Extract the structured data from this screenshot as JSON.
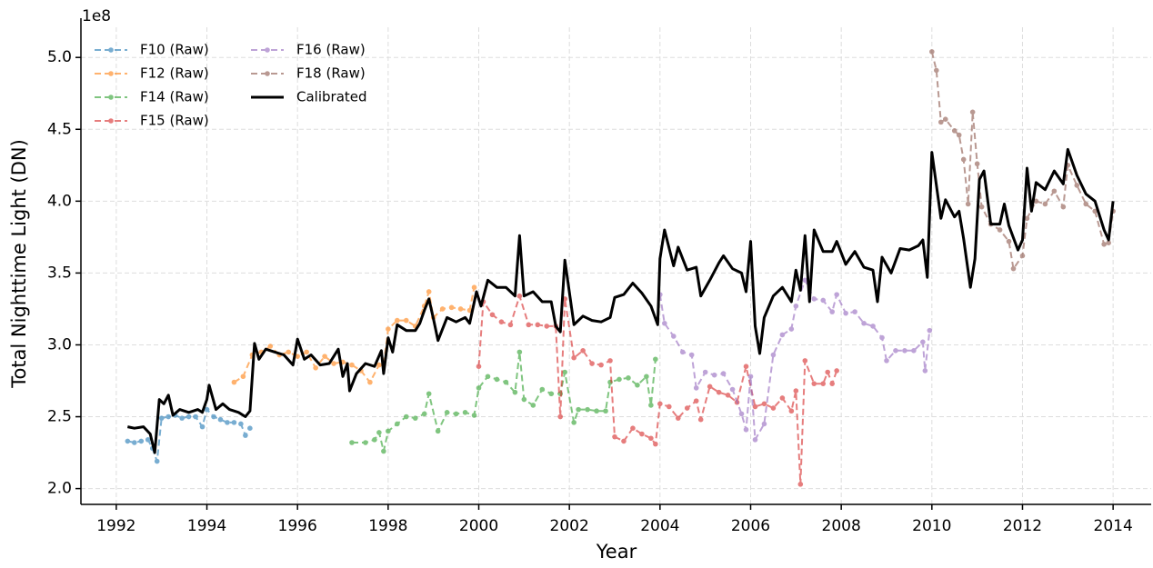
{
  "chart_data": {
    "type": "line",
    "axis_offset_label": "1e8",
    "xlabel": "Year",
    "ylabel": "Total Nighttime Light (DN)",
    "xlim": [
      1991.22,
      2014.84
    ],
    "ylim": [
      1.89,
      5.21
    ],
    "xticks": [
      1992,
      1994,
      1996,
      1998,
      2000,
      2002,
      2004,
      2006,
      2008,
      2010,
      2012,
      2014
    ],
    "yticks": [
      {
        "value": 2,
        "label": "2.0"
      },
      {
        "value": 2.5,
        "label": "2.5"
      },
      {
        "value": 3,
        "label": "3.0"
      },
      {
        "value": 3.5,
        "label": "3.5"
      },
      {
        "value": 4,
        "label": "4.0"
      },
      {
        "value": 4.5,
        "label": "4.5"
      },
      {
        "value": 5,
        "label": "5.0"
      }
    ],
    "grid": true,
    "legend": "upper left",
    "series": [
      {
        "name": "F10 (Raw)",
        "color": "#1f77b4",
        "dashed": true,
        "markers": true,
        "x": [
          1992.25,
          1992.4,
          1992.55,
          1992.7,
          1992.8,
          1992.9,
          1993.0,
          1993.15,
          1993.3,
          1993.45,
          1993.6,
          1993.75,
          1993.9,
          1994.0,
          1994.15,
          1994.3,
          1994.45,
          1994.6,
          1994.75,
          1994.85,
          1994.95
        ],
        "values": [
          2.33,
          2.32,
          2.33,
          2.34,
          2.28,
          2.19,
          2.49,
          2.5,
          2.51,
          2.49,
          2.5,
          2.5,
          2.43,
          2.55,
          2.5,
          2.48,
          2.46,
          2.46,
          2.45,
          2.37,
          2.42
        ]
      },
      {
        "name": "F12 (Raw)",
        "color": "#ff7f0e",
        "dashed": true,
        "markers": true,
        "x": [
          1994.6,
          1994.8,
          1995.0,
          1995.2,
          1995.4,
          1995.6,
          1995.8,
          1996.0,
          1996.2,
          1996.4,
          1996.6,
          1996.8,
          1997.0,
          1997.2,
          1997.4,
          1997.6,
          1997.8,
          1997.9,
          1998.0,
          1998.2,
          1998.4,
          1998.6,
          1998.8,
          1998.9,
          1999.0,
          1999.2,
          1999.4,
          1999.6,
          1999.8,
          1999.9
        ],
        "values": [
          2.74,
          2.78,
          2.93,
          2.95,
          2.99,
          2.93,
          2.95,
          2.92,
          2.95,
          2.84,
          2.92,
          2.87,
          2.88,
          2.86,
          2.82,
          2.74,
          2.86,
          2.86,
          3.11,
          3.17,
          3.17,
          3.13,
          3.27,
          3.37,
          3.19,
          3.25,
          3.26,
          3.25,
          3.24,
          3.4
        ]
      },
      {
        "name": "F14 (Raw)",
        "color": "#2ca02c",
        "dashed": true,
        "markers": true,
        "x": [
          1997.2,
          1997.5,
          1997.7,
          1997.8,
          1997.9,
          1998.0,
          1998.2,
          1998.4,
          1998.6,
          1998.8,
          1998.9,
          1999.1,
          1999.3,
          1999.5,
          1999.7,
          1999.9,
          2000.0,
          2000.2,
          2000.4,
          2000.6,
          2000.8,
          2000.9,
          2001.0,
          2001.2,
          2001.4,
          2001.6,
          2001.8,
          2001.9,
          2002.1,
          2002.2,
          2002.4,
          2002.6,
          2002.8,
          2002.9,
          2003.1,
          2003.3,
          2003.5,
          2003.7,
          2003.8,
          2003.9
        ],
        "values": [
          2.32,
          2.32,
          2.34,
          2.39,
          2.26,
          2.4,
          2.45,
          2.5,
          2.49,
          2.52,
          2.66,
          2.4,
          2.53,
          2.52,
          2.53,
          2.51,
          2.7,
          2.78,
          2.76,
          2.74,
          2.67,
          2.95,
          2.62,
          2.58,
          2.69,
          2.66,
          2.66,
          2.81,
          2.46,
          2.55,
          2.55,
          2.54,
          2.54,
          2.74,
          2.76,
          2.77,
          2.72,
          2.78,
          2.58,
          2.9
        ]
      },
      {
        "name": "F15 (Raw)",
        "color": "#d62728",
        "dashed": true,
        "markers": true,
        "x": [
          2000.0,
          2000.1,
          2000.3,
          2000.5,
          2000.7,
          2000.9,
          2001.1,
          2001.3,
          2001.5,
          2001.7,
          2001.8,
          2001.9,
          2002.1,
          2002.3,
          2002.5,
          2002.7,
          2002.9,
          2003.0,
          2003.2,
          2003.4,
          2003.6,
          2003.8,
          2003.9,
          2004.0,
          2004.2,
          2004.4,
          2004.6,
          2004.8,
          2004.9,
          2005.1,
          2005.3,
          2005.5,
          2005.7,
          2005.9,
          2006.1,
          2006.3,
          2006.5,
          2006.7,
          2006.9,
          2007.0,
          2007.1,
          2007.2,
          2007.4,
          2007.6,
          2007.7,
          2007.8,
          2007.9
        ],
        "values": [
          2.85,
          3.3,
          3.21,
          3.16,
          3.14,
          3.34,
          3.14,
          3.14,
          3.13,
          3.13,
          2.5,
          3.32,
          2.91,
          2.96,
          2.87,
          2.86,
          2.89,
          2.36,
          2.33,
          2.42,
          2.38,
          2.35,
          2.31,
          2.59,
          2.57,
          2.49,
          2.56,
          2.61,
          2.48,
          2.71,
          2.67,
          2.65,
          2.6,
          2.85,
          2.57,
          2.59,
          2.56,
          2.63,
          2.54,
          2.68,
          2.03,
          2.89,
          2.73,
          2.73,
          2.81,
          2.73,
          2.82
        ]
      },
      {
        "name": "F16 (Raw)",
        "color": "#9467bd",
        "dashed": true,
        "markers": true,
        "x": [
          2004.0,
          2004.1,
          2004.3,
          2004.5,
          2004.7,
          2004.8,
          2005.0,
          2005.2,
          2005.4,
          2005.6,
          2005.8,
          2005.9,
          2006.0,
          2006.1,
          2006.3,
          2006.5,
          2006.7,
          2006.9,
          2007.0,
          2007.2,
          2007.4,
          2007.6,
          2007.8,
          2007.9,
          2008.1,
          2008.3,
          2008.5,
          2008.7,
          2008.9,
          2009.0,
          2009.2,
          2009.4,
          2009.6,
          2009.8,
          2009.85,
          2009.95
        ],
        "values": [
          3.35,
          3.15,
          3.06,
          2.95,
          2.93,
          2.7,
          2.81,
          2.79,
          2.8,
          2.69,
          2.52,
          2.41,
          2.78,
          2.34,
          2.45,
          2.93,
          3.07,
          3.11,
          3.27,
          3.45,
          3.32,
          3.31,
          3.23,
          3.35,
          3.22,
          3.23,
          3.15,
          3.13,
          3.05,
          2.89,
          2.96,
          2.96,
          2.96,
          3.02,
          2.82,
          3.1
        ]
      },
      {
        "name": "F18 (Raw)",
        "color": "#8c564b",
        "dashed": true,
        "markers": true,
        "x": [
          2010.0,
          2010.1,
          2010.2,
          2010.3,
          2010.5,
          2010.6,
          2010.7,
          2010.8,
          2010.9,
          2011.0,
          2011.1,
          2011.3,
          2011.5,
          2011.7,
          2011.8,
          2012.0,
          2012.1,
          2012.3,
          2012.5,
          2012.7,
          2012.9,
          2013.0,
          2013.2,
          2013.4,
          2013.6,
          2013.8,
          2013.9,
          2014.0
        ],
        "values": [
          5.04,
          4.91,
          4.55,
          4.57,
          4.49,
          4.46,
          4.29,
          3.98,
          4.62,
          4.26,
          3.96,
          3.84,
          3.8,
          3.72,
          3.53,
          3.62,
          3.88,
          4.0,
          3.98,
          4.07,
          3.96,
          4.25,
          4.11,
          3.98,
          3.93,
          3.7,
          3.71,
          3.93
        ]
      },
      {
        "name": "Calibrated",
        "color": "#000000",
        "dashed": false,
        "markers": false,
        "x": [
          1992.25,
          1992.4,
          1992.6,
          1992.75,
          1992.85,
          1992.95,
          1993.05,
          1993.15,
          1993.25,
          1993.4,
          1993.6,
          1993.8,
          1993.9,
          1994.0,
          1994.05,
          1994.2,
          1994.35,
          1994.5,
          1994.7,
          1994.85,
          1994.95,
          1995.05,
          1995.15,
          1995.3,
          1995.5,
          1995.7,
          1995.9,
          1996.0,
          1996.15,
          1996.3,
          1996.5,
          1996.7,
          1996.9,
          1997.0,
          1997.1,
          1997.15,
          1997.3,
          1997.5,
          1997.7,
          1997.85,
          1997.9,
          1998.0,
          1998.1,
          1998.2,
          1998.4,
          1998.6,
          1998.7,
          1998.8,
          1998.9,
          1999.0,
          1999.1,
          1999.3,
          1999.5,
          1999.7,
          1999.8,
          1999.95,
          2000.05,
          2000.2,
          2000.4,
          2000.6,
          2000.8,
          2000.9,
          2001.0,
          2001.2,
          2001.4,
          2001.6,
          2001.7,
          2001.8,
          2001.9,
          2002.1,
          2002.3,
          2002.5,
          2002.7,
          2002.9,
          2003.0,
          2003.2,
          2003.4,
          2003.6,
          2003.8,
          2003.95,
          2004.0,
          2004.1,
          2004.3,
          2004.4,
          2004.6,
          2004.8,
          2004.9,
          2005.1,
          2005.3,
          2005.4,
          2005.6,
          2005.8,
          2005.9,
          2006.0,
          2006.1,
          2006.2,
          2006.3,
          2006.5,
          2006.7,
          2006.9,
          2007.0,
          2007.1,
          2007.2,
          2007.3,
          2007.4,
          2007.6,
          2007.8,
          2007.9,
          2008.1,
          2008.3,
          2008.5,
          2008.7,
          2008.8,
          2008.9,
          2009.1,
          2009.3,
          2009.5,
          2009.7,
          2009.8,
          2009.9,
          2010.0,
          2010.2,
          2010.3,
          2010.5,
          2010.6,
          2010.7,
          2010.85,
          2010.95,
          2011.05,
          2011.15,
          2011.3,
          2011.5,
          2011.6,
          2011.7,
          2011.9,
          2012.0,
          2012.1,
          2012.2,
          2012.3,
          2012.5,
          2012.7,
          2012.9,
          2013.0,
          2013.2,
          2013.4,
          2013.6,
          2013.8,
          2013.9,
          2014.0
        ],
        "values": [
          2.43,
          2.42,
          2.43,
          2.38,
          2.25,
          2.62,
          2.59,
          2.65,
          2.51,
          2.55,
          2.53,
          2.55,
          2.53,
          2.62,
          2.72,
          2.55,
          2.59,
          2.55,
          2.53,
          2.5,
          2.54,
          3.01,
          2.9,
          2.97,
          2.95,
          2.93,
          2.86,
          3.04,
          2.9,
          2.93,
          2.86,
          2.87,
          2.97,
          2.78,
          2.87,
          2.68,
          2.8,
          2.87,
          2.85,
          2.96,
          2.8,
          3.05,
          2.95,
          3.14,
          3.1,
          3.1,
          3.15,
          3.24,
          3.32,
          3.18,
          3.03,
          3.19,
          3.16,
          3.19,
          3.15,
          3.37,
          3.27,
          3.45,
          3.4,
          3.4,
          3.34,
          3.76,
          3.34,
          3.37,
          3.3,
          3.3,
          3.13,
          3.09,
          3.59,
          3.14,
          3.2,
          3.17,
          3.16,
          3.19,
          3.33,
          3.35,
          3.43,
          3.36,
          3.27,
          3.14,
          3.6,
          3.8,
          3.55,
          3.68,
          3.52,
          3.54,
          3.34,
          3.45,
          3.57,
          3.62,
          3.53,
          3.5,
          3.37,
          3.72,
          3.13,
          2.94,
          3.19,
          3.34,
          3.4,
          3.3,
          3.52,
          3.38,
          3.76,
          3.3,
          3.8,
          3.65,
          3.65,
          3.72,
          3.56,
          3.65,
          3.54,
          3.52,
          3.3,
          3.61,
          3.5,
          3.67,
          3.66,
          3.69,
          3.73,
          3.47,
          4.34,
          3.88,
          4.01,
          3.89,
          3.93,
          3.74,
          3.4,
          3.6,
          4.15,
          4.21,
          3.84,
          3.84,
          3.98,
          3.83,
          3.66,
          3.73,
          4.23,
          3.93,
          4.13,
          4.08,
          4.21,
          4.12,
          4.36,
          4.18,
          4.05,
          4.0,
          3.8,
          3.73,
          4.0
        ]
      }
    ]
  }
}
